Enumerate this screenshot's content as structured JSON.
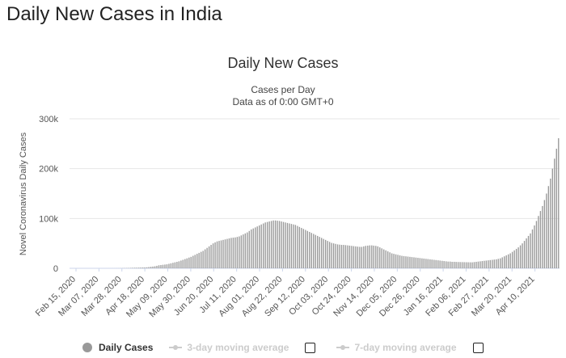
{
  "page": {
    "title": "Daily New Cases in India"
  },
  "chart_data": {
    "type": "bar",
    "title": "Daily New Cases",
    "subtitle": "Cases per Day",
    "subtitle2": "Data as of 0:00 GMT+0",
    "xlabel": "",
    "ylabel": "Novel Coronavirus Daily Cases",
    "ylim": [
      0,
      300000
    ],
    "y_ticks": [
      0,
      100000,
      200000,
      300000
    ],
    "y_tick_labels": [
      "0",
      "100k",
      "200k",
      "300k"
    ],
    "x_start": "2020-02-15",
    "x_end": "2021-04-18",
    "x_tick_labels": [
      "Feb 15, 2020",
      "Mar 07, 2020",
      "Mar 28, 2020",
      "Apr 18, 2020",
      "May 09, 2020",
      "May 30, 2020",
      "Jun 20, 2020",
      "Jul 11, 2020",
      "Aug 01, 2020",
      "Aug 22, 2020",
      "Sep 12, 2020",
      "Oct 03, 2020",
      "Oct 24, 2020",
      "Nov 14, 2020",
      "Dec 05, 2020",
      "Dec 26, 2020",
      "Jan 16, 2021",
      "Feb 06, 2021",
      "Feb 27, 2021",
      "Mar 20, 2021",
      "Apr 10, 2021"
    ],
    "grid": true,
    "bar_color": "#999999",
    "series": [
      {
        "name": "Daily Cases",
        "values": [
          0,
          0,
          0,
          0,
          0,
          0,
          0,
          0,
          0,
          0,
          0,
          0,
          0,
          0,
          0,
          0,
          0,
          0,
          10,
          20,
          30,
          50,
          70,
          100,
          150,
          200,
          300,
          400,
          500,
          600,
          800,
          1000,
          1100,
          1200,
          1300,
          1500,
          1600,
          1800,
          2000,
          2500,
          3000,
          3500,
          4000,
          5000,
          6000,
          6500,
          7000,
          7500,
          8000,
          9000,
          10000,
          11000,
          12000,
          13000,
          14000,
          15500,
          17000,
          18500,
          20000,
          21500,
          23000,
          25000,
          27000,
          29000,
          31000,
          33000,
          35000,
          38000,
          41000,
          44000,
          47000,
          50000,
          52000,
          54000,
          55000,
          56000,
          57000,
          58000,
          59000,
          60000,
          61000,
          61500,
          62000,
          63000,
          64000,
          66000,
          68000,
          70000,
          72000,
          75000,
          78000,
          80000,
          82000,
          84000,
          86000,
          88000,
          90000,
          92000,
          93000,
          94000,
          95000,
          96000,
          96000,
          95500,
          95000,
          94000,
          93000,
          92000,
          91000,
          90000,
          89000,
          88000,
          87000,
          85000,
          83000,
          81000,
          79000,
          77000,
          75000,
          73000,
          71000,
          69000,
          67000,
          65000,
          63000,
          61000,
          59000,
          57000,
          55000,
          53000,
          51000,
          50000,
          49000,
          48000,
          47500,
          47000,
          47000,
          46500,
          46000,
          45500,
          45000,
          44500,
          44000,
          43500,
          43000,
          43000,
          44000,
          45000,
          45500,
          46000,
          46000,
          45500,
          45000,
          44000,
          42000,
          40000,
          38000,
          36000,
          34000,
          32000,
          30000,
          29000,
          28000,
          27000,
          26000,
          25000,
          24500,
          24000,
          23500,
          23000,
          22500,
          22000,
          21500,
          21000,
          20500,
          20000,
          19500,
          19000,
          18500,
          18000,
          17500,
          17000,
          16500,
          16000,
          15500,
          15000,
          14500,
          14000,
          13500,
          13500,
          13000,
          13000,
          12800,
          12600,
          12500,
          12400,
          12300,
          12200,
          12100,
          12000,
          12000,
          12500,
          13000,
          13500,
          14000,
          14500,
          15000,
          15500,
          16000,
          16500,
          17000,
          17500,
          18000,
          19000,
          20000,
          22000,
          24000,
          26000,
          28000,
          30000,
          33000,
          36000,
          39000,
          42000,
          46000,
          50000,
          55000,
          60000,
          65000,
          70000,
          78000,
          86000,
          95000,
          105000,
          115000,
          125000,
          137000,
          150000,
          165000,
          180000,
          200000,
          220000,
          240000,
          261000
        ]
      },
      {
        "name": "3-day moving average",
        "values": []
      },
      {
        "name": "7-day moving average",
        "values": []
      }
    ]
  },
  "legend": {
    "daily": "Daily Cases",
    "ma3": "3-day moving average",
    "ma7": "7-day moving average"
  }
}
